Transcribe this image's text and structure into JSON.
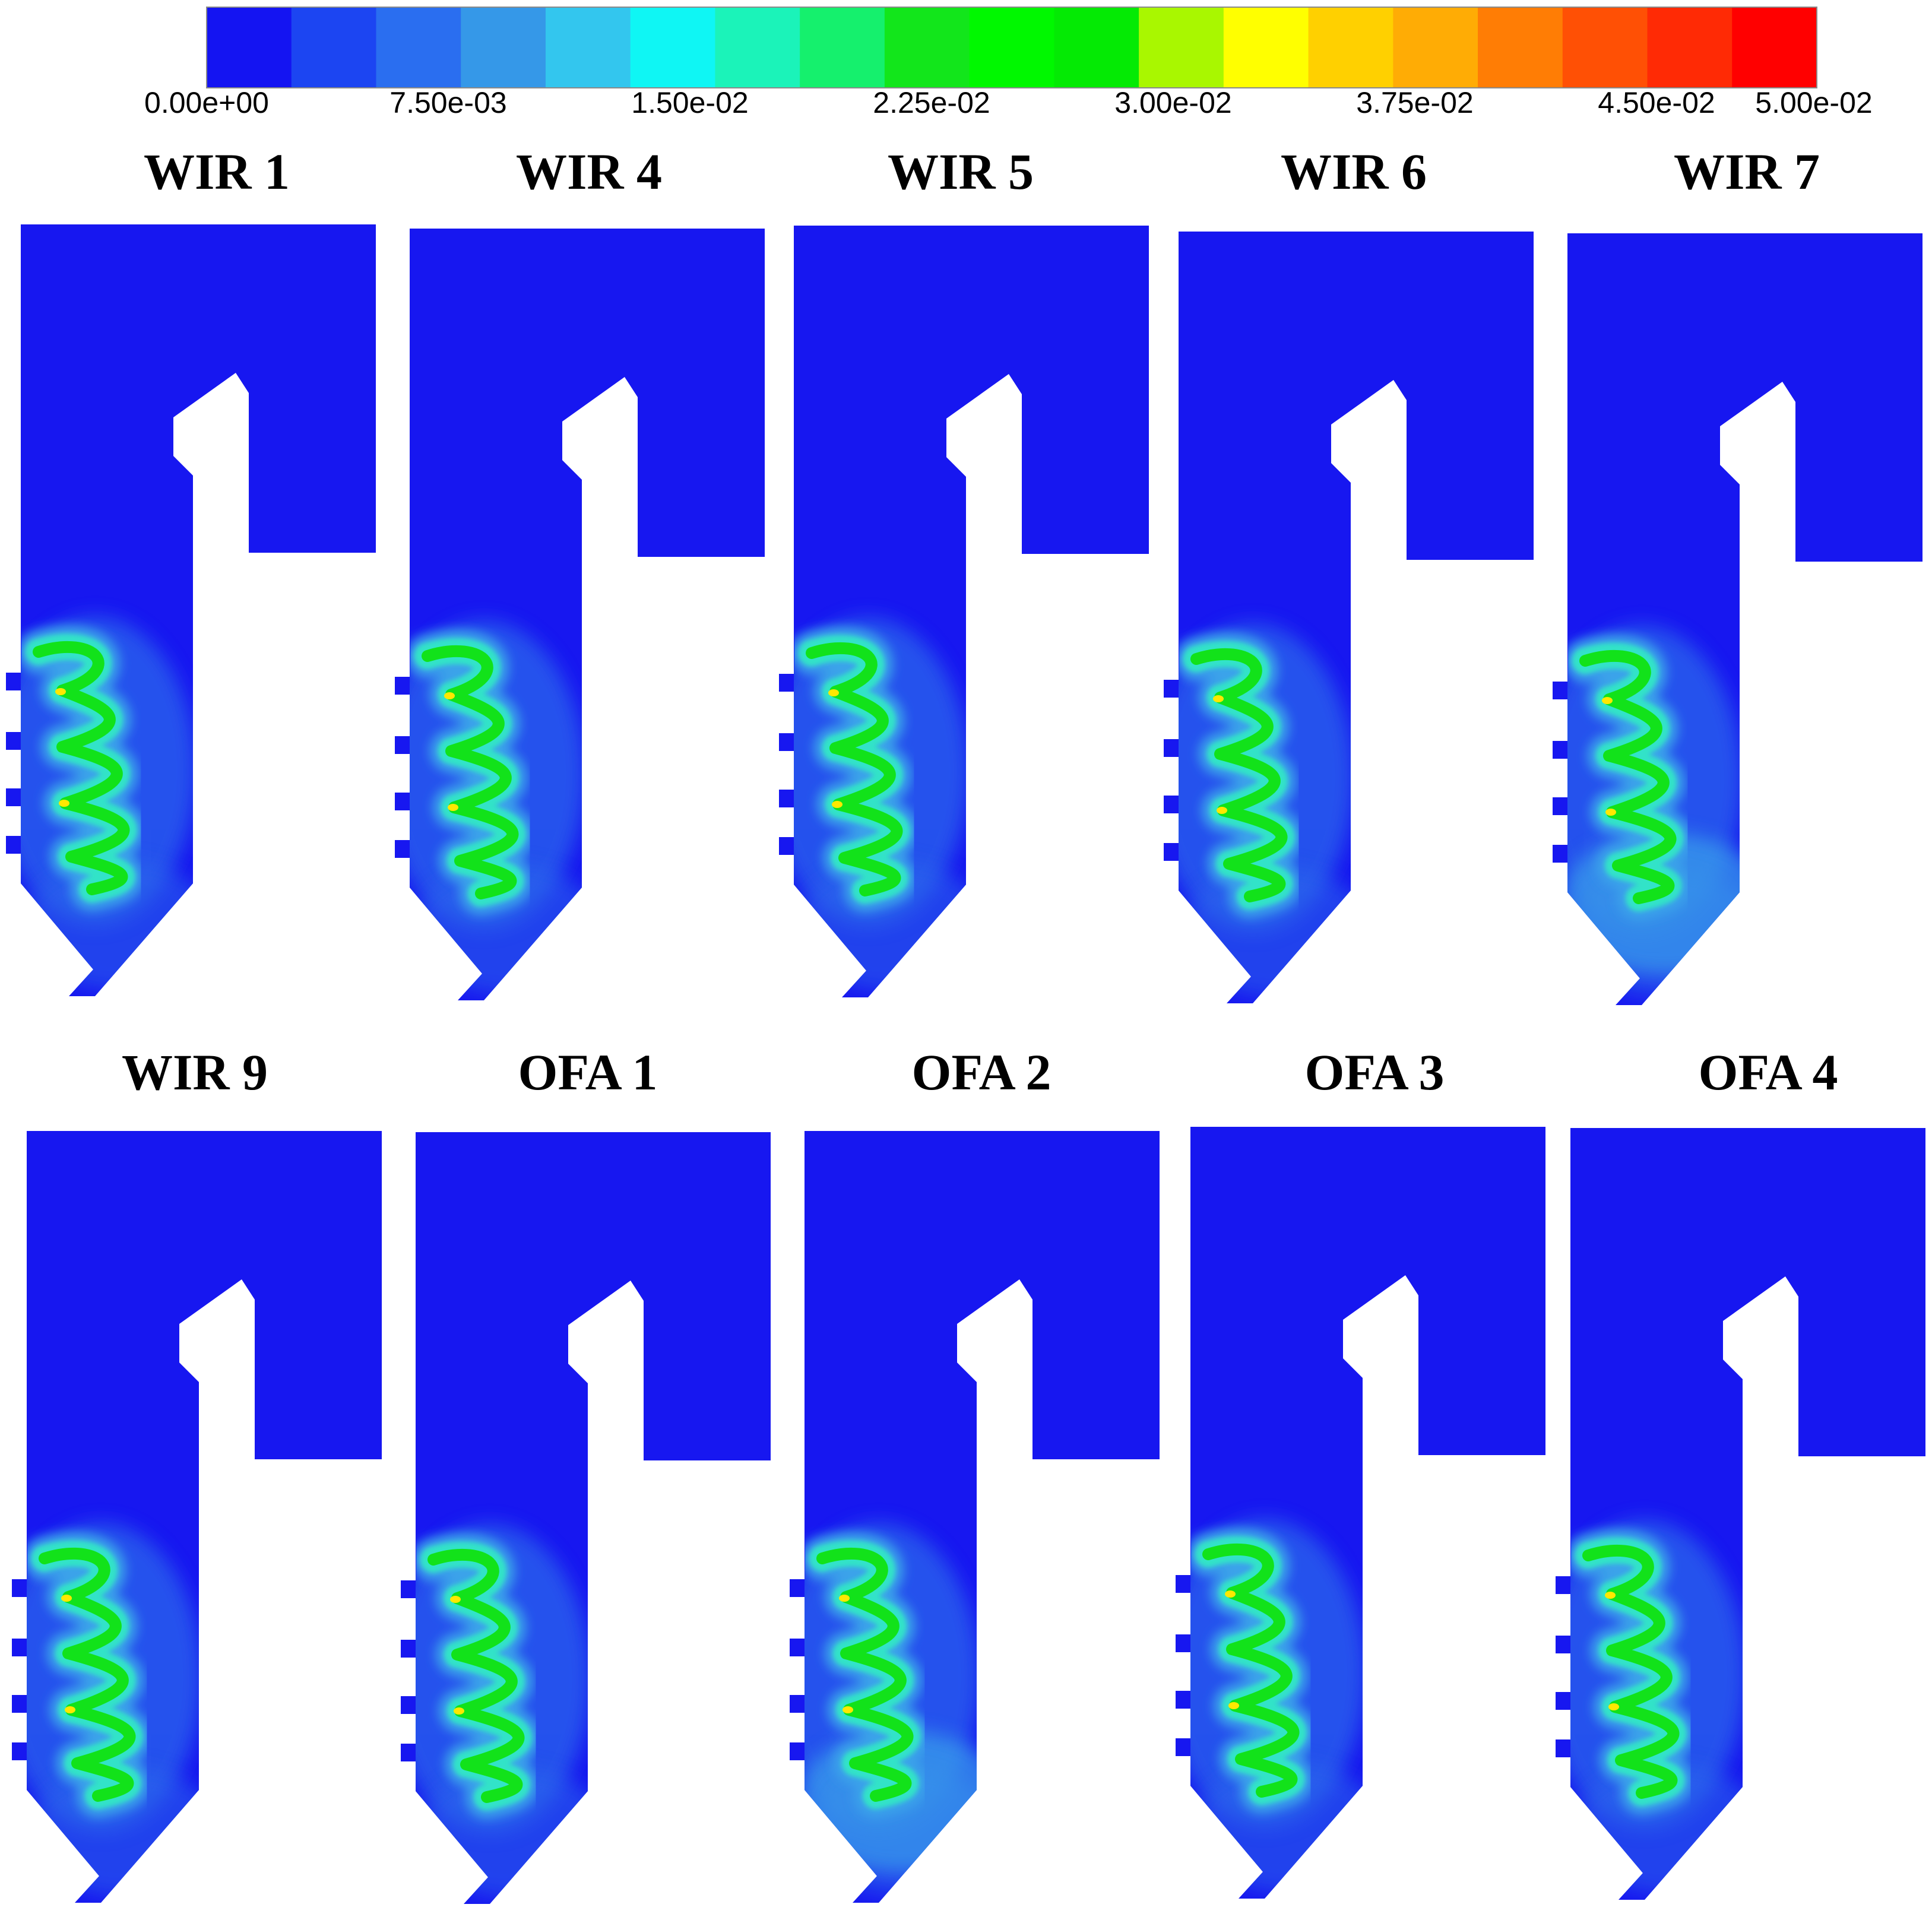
{
  "colorbar": {
    "colors": [
      "#1414f2",
      "#1c45f2",
      "#2a6ef0",
      "#3598e8",
      "#33c6ee",
      "#0ff6f4",
      "#1bf3b9",
      "#15f06d",
      "#12e61b",
      "#00f800",
      "#04ea04",
      "#a9f700",
      "#ffff00",
      "#ffd000",
      "#ffac05",
      "#ff7d05",
      "#ff5005",
      "#ff2a05",
      "#ff0000"
    ],
    "tick_labels": [
      "0.00e+00",
      "7.50e-03",
      "1.50e-02",
      "2.25e-02",
      "3.00e-02",
      "3.75e-02",
      "4.50e-02",
      "5.00e-02"
    ],
    "min": 0.0,
    "max": 0.05
  },
  "panels": [
    {
      "title": "WIR 1"
    },
    {
      "title": "WIR 4"
    },
    {
      "title": "WIR 5"
    },
    {
      "title": "WIR 6"
    },
    {
      "title": "WIR 7"
    },
    {
      "title": "WIR 9"
    },
    {
      "title": "OFA 1"
    },
    {
      "title": "OFA 2"
    },
    {
      "title": "OFA 3"
    },
    {
      "title": "OFA 4"
    }
  ],
  "field_colors": {
    "base": "#1717f0",
    "halo": "#2c66ec",
    "light": "#3ba3ea",
    "cyan": "#33e3c8",
    "green": "#12e21a",
    "yellow": "#ffe800"
  }
}
